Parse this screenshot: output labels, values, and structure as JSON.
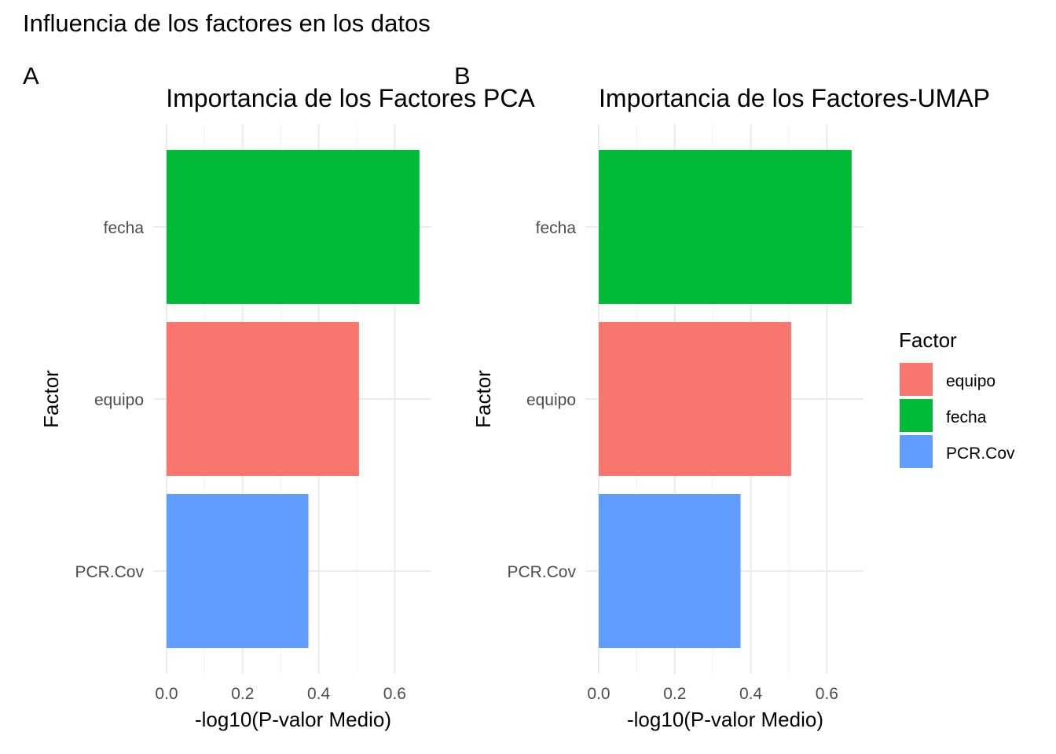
{
  "figure": {
    "title": "Influencia de los factores en los datos"
  },
  "colors": {
    "equipo": "#F8766D",
    "fecha": "#00BA38",
    "PCR.Cov": "#619CFF"
  },
  "legend": {
    "title": "Factor",
    "items": [
      "equipo",
      "fecha",
      "PCR.Cov"
    ]
  },
  "chart_data": [
    {
      "tag": "A",
      "type": "bar",
      "orientation": "horizontal",
      "title": "Importancia de los Factores PCA",
      "xlabel": "-log10(P-valor Medio)",
      "ylabel": "Factor",
      "categories": [
        "fecha",
        "equipo",
        "PCR.Cov"
      ],
      "values": [
        0.665,
        0.506,
        0.373
      ],
      "xlim": [
        0,
        0.7
      ],
      "xticks": [
        0.0,
        0.2,
        0.4,
        0.6
      ],
      "xtick_labels": [
        "0.0",
        "0.2",
        "0.4",
        "0.6"
      ],
      "grid": true
    },
    {
      "tag": "B",
      "type": "bar",
      "orientation": "horizontal",
      "title": "Importancia de los Factores-UMAP",
      "xlabel": "-log10(P-valor Medio)",
      "ylabel": "Factor",
      "categories": [
        "fecha",
        "equipo",
        "PCR.Cov"
      ],
      "values": [
        0.665,
        0.506,
        0.373
      ],
      "xlim": [
        0,
        0.7
      ],
      "xticks": [
        0.0,
        0.2,
        0.4,
        0.6
      ],
      "xtick_labels": [
        "0.0",
        "0.2",
        "0.4",
        "0.6"
      ],
      "grid": true
    }
  ]
}
